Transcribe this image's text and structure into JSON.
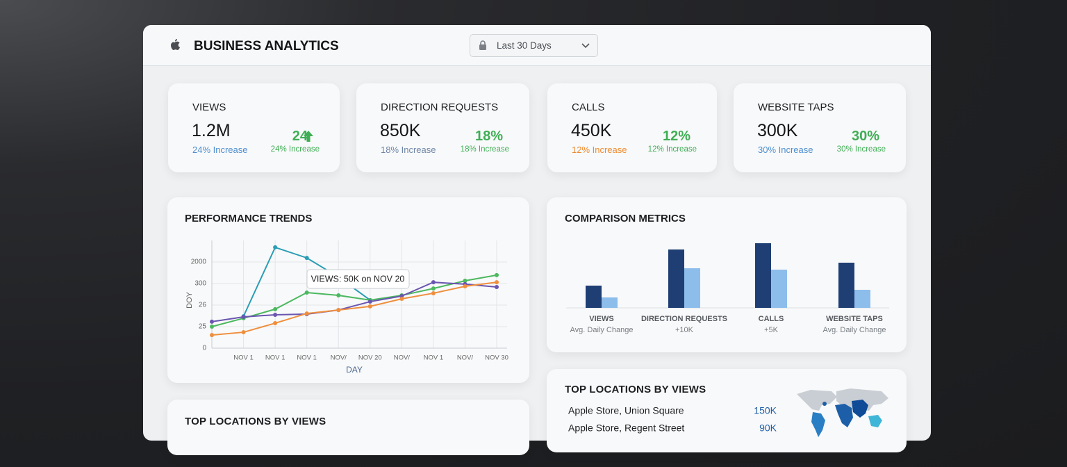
{
  "header": {
    "title": "BUSINESS ANALYTICS",
    "date_range": "Last 30 Days"
  },
  "kpis": [
    {
      "label": "VIEWS",
      "value": "1.2M",
      "change": "24% Increase",
      "change_color": "#4f8fd0",
      "delta": "24",
      "delta_change": "24% Increase"
    },
    {
      "label": "DIRECTION REQUESTS",
      "value": "850K",
      "change": "18% Increase",
      "change_color": "#6f87a6",
      "delta": "18%",
      "delta_change": "18% Increase"
    },
    {
      "label": "CALLS",
      "value": "450K",
      "change": "12% Increase",
      "change_color": "#ef8a2f",
      "delta": "12%",
      "delta_change": "12% Increase"
    },
    {
      "label": "WEBSITE TAPS",
      "value": "300K",
      "change": "30% Increase",
      "change_color": "#4f8fd0",
      "delta": "30%",
      "delta_change": "30% Increase"
    }
  ],
  "chart_data": [
    {
      "type": "line",
      "title": "PERFORMANCE TRENDS",
      "x_label": "DAY",
      "y_label": "DOY",
      "annotation": "VIEWS: 50K on NOV 20",
      "categories": [
        null,
        "NOV 1",
        "NOV 1",
        "NOV 1",
        "NOV/",
        "NOV 20",
        "NOV/",
        "NOV 1",
        "NOV/",
        "NOV 30"
      ],
      "ylim": [
        0,
        5
      ],
      "yticks": [
        0,
        {
          "value": 1,
          "label": "25"
        },
        {
          "value": 2,
          "label": "26"
        },
        {
          "value": 3,
          "label": "300"
        },
        {
          "value": 4,
          "label": "2000"
        }
      ],
      "grid": true,
      "series": [
        {
          "color": "#2a9db5",
          "values": [
            null,
            1.48,
            4.68,
            4.19,
            3.3,
            2.23,
            null,
            null,
            null,
            null
          ]
        },
        {
          "color": "#4cb860",
          "values": [
            1.0,
            1.39,
            1.81,
            2.58,
            2.45,
            2.23,
            2.45,
            2.77,
            3.13,
            3.39
          ]
        },
        {
          "color": "#6a55b0",
          "values": [
            1.23,
            1.45,
            1.55,
            1.58,
            1.77,
            2.16,
            2.42,
            3.06,
            2.97,
            2.84
          ]
        },
        {
          "color": "#ef8f3e",
          "values": [
            0.61,
            0.74,
            1.16,
            1.61,
            1.77,
            1.94,
            2.29,
            2.55,
            2.87,
            3.06
          ]
        }
      ]
    },
    {
      "type": "bar",
      "title": "COMPARISON METRICS",
      "categories": [
        "VIEWS",
        "DIRECTION REQUESTS",
        "CALLS",
        "WEBSITE TAPS"
      ],
      "sublabels": [
        "Avg. Daily Change",
        "+10K",
        "+5K",
        "Avg. Daily Change"
      ],
      "ylim": [
        0,
        100
      ],
      "series": [
        {
          "color": "#1f3f74",
          "values": [
            32,
            84,
            93,
            65
          ]
        },
        {
          "color": "#8dbdeb",
          "values": [
            15,
            57,
            55,
            26
          ]
        }
      ]
    }
  ],
  "locations": {
    "title": "TOP LOCATIONS BY VIEWS",
    "rows": [
      [
        "Apple Store, Union Square",
        "150K"
      ],
      [
        "Apple Store, Regent Street",
        "90K"
      ]
    ]
  },
  "locations_left": {
    "title": "TOP LOCATIONS BY VIEWS"
  }
}
